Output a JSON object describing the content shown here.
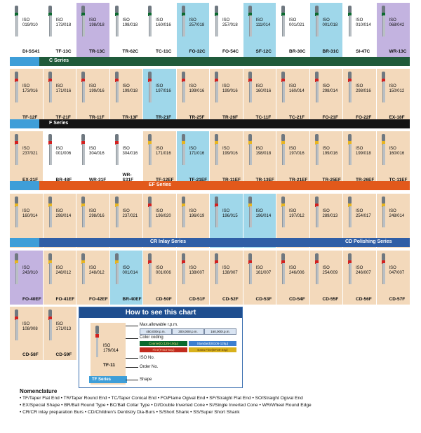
{
  "colors": {
    "white": "#ffffff",
    "cream": "#f3d9bb",
    "lavender": "#c3b3e0",
    "light_blue": "#9fd7ea",
    "c_series_green": "#1f5a3a",
    "f_series_black": "#141414",
    "ef_series_orange": "#e2591b",
    "cr_series_blue": "#2f5ea6",
    "cd_series_blue": "#3e6fb5"
  },
  "rows": [
    {
      "cells": [
        {
          "iso": "ISO",
          "code": "019/010",
          "order": "DI-SS41",
          "bg": "white",
          "band": "#0b6a2f"
        },
        {
          "iso": "ISO",
          "code": "173/018",
          "order": "TF-13C",
          "bg": "white",
          "band": "#0b6a2f"
        },
        {
          "iso": "ISO",
          "code": "198/018",
          "order": "TR-13C",
          "bg": "lavender",
          "band": "#0b6a2f"
        },
        {
          "iso": "ISO",
          "code": "198/018",
          "order": "TR-62C",
          "bg": "white",
          "band": "#0b6a2f"
        },
        {
          "iso": "ISO",
          "code": "160/016",
          "order": "TC-11C",
          "bg": "white",
          "band": "#0b6a2f"
        },
        {
          "iso": "ISO",
          "code": "257/018",
          "order": "FO-32C",
          "bg": "light_blue",
          "band": "#0b6a2f"
        },
        {
          "iso": "ISO",
          "code": "257/018",
          "order": "FO-54C",
          "bg": "white",
          "band": "#0b6a2f"
        },
        {
          "iso": "ISO",
          "code": "111/014",
          "order": "SF-12C",
          "bg": "light_blue",
          "band": "#0b6a2f"
        },
        {
          "iso": "ISO",
          "code": "001/021",
          "order": "BR-30C",
          "bg": "white",
          "band": "#0b6a2f"
        },
        {
          "iso": "ISO",
          "code": "001/018",
          "order": "BR-31C",
          "bg": "light_blue",
          "band": "#0b6a2f"
        },
        {
          "iso": "ISO",
          "code": "010/014",
          "order": "SI-47C",
          "bg": "white",
          "band": "#0b6a2f"
        },
        {
          "iso": "ISO",
          "code": "068/042",
          "order": "WR-13C",
          "bg": "lavender",
          "band": "#0b6a2f"
        }
      ]
    },
    {
      "cells": [
        {
          "iso": "ISO",
          "code": "173/016",
          "order": "TF-12F",
          "bg": "cream",
          "band": "#d3201f"
        },
        {
          "iso": "ISO",
          "code": "171/016",
          "order": "TF-21F",
          "bg": "cream",
          "band": "#d3201f"
        },
        {
          "iso": "ISO",
          "code": "199/016",
          "order": "TR-11F",
          "bg": "cream",
          "band": "#d3201f"
        },
        {
          "iso": "ISO",
          "code": "199/018",
          "order": "TR-13F",
          "bg": "cream",
          "band": "#d3201f"
        },
        {
          "iso": "ISO",
          "code": "197/016",
          "order": "TR-21F",
          "bg": "light_blue",
          "band": "#d3201f"
        },
        {
          "iso": "ISO",
          "code": "199/016",
          "order": "TR-25F",
          "bg": "cream",
          "band": "#d3201f"
        },
        {
          "iso": "ISO",
          "code": "199/016",
          "order": "TR-26F",
          "bg": "cream",
          "band": "#d3201f"
        },
        {
          "iso": "ISO",
          "code": "160/016",
          "order": "TC-11F",
          "bg": "cream",
          "band": "#d3201f"
        },
        {
          "iso": "ISO",
          "code": "160/014",
          "order": "TC-21F",
          "bg": "cream",
          "band": "#d3201f"
        },
        {
          "iso": "ISO",
          "code": "298/014",
          "order": "FO-21F",
          "bg": "cream",
          "band": "#d3201f"
        },
        {
          "iso": "ISO",
          "code": "298/016",
          "order": "FO-22F",
          "bg": "cream",
          "band": "#d3201f"
        },
        {
          "iso": "ISO",
          "code": "150/012",
          "order": "EX-18F",
          "bg": "cream",
          "band": "#d3201f"
        }
      ]
    },
    {
      "cells": [
        {
          "iso": "ISO",
          "code": "237/021",
          "order": "EX-21F",
          "bg": "cream",
          "band": "#d3201f"
        },
        {
          "iso": "ISO",
          "code": "001/006",
          "order": "BR-48F",
          "bg": "white",
          "band": "#d3201f"
        },
        {
          "iso": "ISO",
          "code": "304/016",
          "order": "WR-31F",
          "bg": "white",
          "band": "#d3201f"
        },
        {
          "iso": "ISO",
          "code": "304/016",
          "order": "WR-S31F",
          "bg": "white",
          "band": "#d3201f"
        },
        {
          "iso": "ISO",
          "code": "171/016",
          "order": "TF-12EF",
          "bg": "cream",
          "band": "#e8b51f"
        },
        {
          "iso": "ISO",
          "code": "171/016",
          "order": "TF-21EF",
          "bg": "light_blue",
          "band": "#e8b51f"
        },
        {
          "iso": "ISO",
          "code": "199/016",
          "order": "TR-11EF",
          "bg": "cream",
          "band": "#e8b51f"
        },
        {
          "iso": "ISO",
          "code": "198/018",
          "order": "TR-13EF",
          "bg": "cream",
          "band": "#e8b51f"
        },
        {
          "iso": "ISO",
          "code": "197/016",
          "order": "TR-21EF",
          "bg": "cream",
          "band": "#e8b51f"
        },
        {
          "iso": "ISO",
          "code": "199/016",
          "order": "TR-25EF",
          "bg": "cream",
          "band": "#e8b51f"
        },
        {
          "iso": "ISO",
          "code": "199/018",
          "order": "TR-26EF",
          "bg": "cream",
          "band": "#e8b51f"
        },
        {
          "iso": "ISO",
          "code": "160/016",
          "order": "TC-11EF",
          "bg": "cream",
          "band": "#e8b51f"
        }
      ]
    },
    {
      "cells": [
        {
          "iso": "ISO",
          "code": "160/014",
          "order": "TC-21EF",
          "bg": "cream",
          "band": "#e8b51f"
        },
        {
          "iso": "ISO",
          "code": "298/014",
          "order": "FO-21EF",
          "bg": "cream",
          "band": "#e8b51f"
        },
        {
          "iso": "ISO",
          "code": "298/016",
          "order": "FO-22EF",
          "bg": "cream",
          "band": "#e8b51f"
        },
        {
          "iso": "ISO",
          "code": "237/021",
          "order": "EX-21EF",
          "bg": "cream",
          "band": "#e8b51f"
        },
        {
          "iso": "ISO",
          "code": "196/020",
          "order": "CR-11F",
          "bg": "cream",
          "band": "#d3201f"
        },
        {
          "iso": "ISO",
          "code": "196/019",
          "order": "CR-11EF",
          "bg": "cream",
          "band": "#e8b51f"
        },
        {
          "iso": "ISO",
          "code": "196/015",
          "order": "CR-12F",
          "bg": "light_blue",
          "band": "#d3201f"
        },
        {
          "iso": "ISO",
          "code": "196/014",
          "order": "CR-12EF",
          "bg": "light_blue",
          "band": "#e8b51f"
        },
        {
          "iso": "ISO",
          "code": "197/012",
          "order": "CR-21EF",
          "bg": "cream",
          "band": "#e8b51f"
        },
        {
          "iso": "ISO",
          "code": "289/013",
          "order": "CR-22F",
          "bg": "cream",
          "band": "#d3201f"
        },
        {
          "iso": "ISO",
          "code": "254/017",
          "order": "FO-20EF",
          "bg": "cream",
          "band": "#e8b51f"
        },
        {
          "iso": "ISO",
          "code": "248/014",
          "order": "FO-20EF",
          "bg": "cream",
          "band": "#e8b51f"
        }
      ]
    },
    {
      "cells": [
        {
          "iso": "ISO",
          "code": "243/010",
          "order": "FO-40EF",
          "bg": "lavender",
          "band": "#e8b51f"
        },
        {
          "iso": "ISO",
          "code": "248/012",
          "order": "FO-41EF",
          "bg": "cream",
          "band": "#e8b51f"
        },
        {
          "iso": "ISO",
          "code": "248/012",
          "order": "FO-42EF",
          "bg": "cream",
          "band": "#e8b51f"
        },
        {
          "iso": "ISO",
          "code": "001/014",
          "order": "BR-40EF",
          "bg": "light_blue",
          "band": "#e8b51f"
        },
        {
          "iso": "ISO",
          "code": "001/006",
          "order": "CD-50F",
          "bg": "cream",
          "band": "#d3201f"
        },
        {
          "iso": "ISO",
          "code": "138/007",
          "order": "CD-51F",
          "bg": "cream",
          "band": "#d3201f"
        },
        {
          "iso": "ISO",
          "code": "138/007",
          "order": "CD-52F",
          "bg": "cream",
          "band": "#d3201f"
        },
        {
          "iso": "ISO",
          "code": "161/007",
          "order": "CD-53F",
          "bg": "cream",
          "band": "#d3201f"
        },
        {
          "iso": "ISO",
          "code": "246/006",
          "order": "CD-54F",
          "bg": "cream",
          "band": "#d3201f"
        },
        {
          "iso": "ISO",
          "code": "254/009",
          "order": "CD-55F",
          "bg": "cream",
          "band": "#d3201f"
        },
        {
          "iso": "ISO",
          "code": "246/007",
          "order": "CD-56F",
          "bg": "cream",
          "band": "#d3201f"
        },
        {
          "iso": "ISO",
          "code": "047/007",
          "order": "CD-57F",
          "bg": "cream",
          "band": "#d3201f"
        }
      ]
    },
    {
      "cells": [
        {
          "iso": "ISO",
          "code": "108/008",
          "order": "CD-58F",
          "bg": "cream",
          "band": "#d3201f"
        },
        {
          "iso": "ISO",
          "code": "171/013",
          "order": "CD-59F",
          "bg": "cream",
          "band": "#d3201f"
        }
      ]
    }
  ],
  "separators": [
    {
      "label": "C Series",
      "color": "c_series_green",
      "label_right": ""
    },
    {
      "label": "F Series",
      "color": "f_series_black",
      "label_right": ""
    },
    {
      "label": "EF Series",
      "color": "ef_series_orange",
      "label_right": ""
    },
    {
      "label": "CR Inlay Series",
      "color": "cr_series_blue",
      "label_right": "CD Polishing Series"
    }
  ],
  "legend": {
    "title": "How to see this chart",
    "max_rpm_label": "Max.allowable r.p.m.",
    "rpm_chips": [
      "450,000r.p.m.",
      "300,000r.p.m.",
      "160,000r.p.m."
    ],
    "color_coding_label": "Color coding",
    "color_chips": [
      {
        "text": "Coarse(Cc125-150μ)",
        "color": "#0b6a2f",
        "text_color": "#f5d87a"
      },
      {
        "text": "Standard(St106-125μ)",
        "color": "#3d7fd0",
        "text_color": "#ffffff"
      },
      {
        "text": "Fine(Fn53-63μ)",
        "color": "#c22b1e",
        "text_color": "#f3c8a0"
      },
      {
        "text": "Extra Fine(EF38-44μ)",
        "color": "#d8b11c",
        "text_color": "#5a3a10"
      }
    ],
    "sample_iso": "ISO",
    "sample_code": "179/014",
    "sample_order": "TF-11",
    "iso_no_label": "ISO No.",
    "order_no_label": "Order No.",
    "shape_label": "Shape",
    "sample_series": "TF Series"
  },
  "nomenclature": {
    "title": "Nomenclature",
    "lines": [
      "• TF/Taper Flat End  • TR/Taper Round End  • TC/Taper Conical End  • FO/Flame Ogival End  • SF/Straight Flat End  • SO/Straight Ogival End",
      "• EX/Special Shape  • BR/Ball Round Type  • BC/Ball Collar Type  • DI/Double Inverted Cone  • SI/Single Inverted Cone  • WR/Wheel Round Edge",
      "• CR/CR inlay preparation Burs   • CD/Children's Dentistry Dia-Burs  • S/Short Shank  • SS/Super Short Shank"
    ]
  }
}
